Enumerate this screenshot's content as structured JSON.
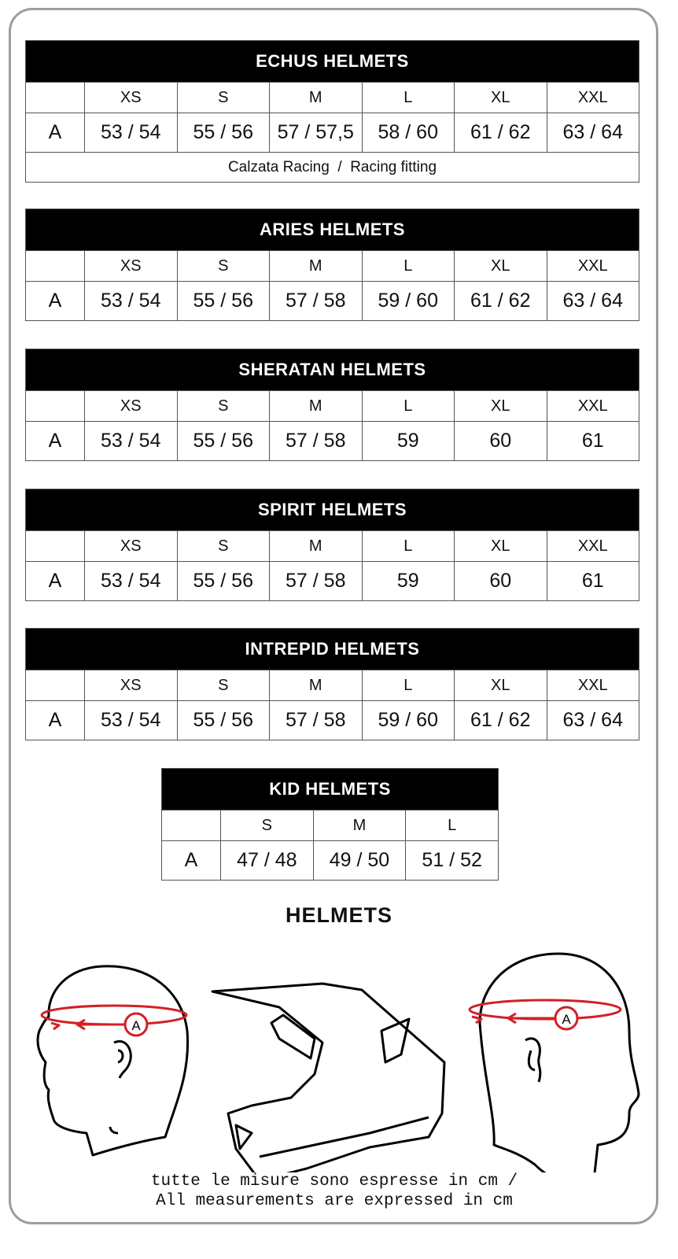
{
  "tables": [
    {
      "title": "ECHUS HELMETS",
      "row_label": "A",
      "sizes": [
        "XS",
        "S",
        "M",
        "L",
        "XL",
        "XXL"
      ],
      "values": [
        "53 / 54",
        "55 / 56",
        "57 / 57,5",
        "58 / 60",
        "61 / 62",
        "63 / 64"
      ],
      "note": "Calzata Racing  /  Racing fitting"
    },
    {
      "title": "ARIES HELMETS",
      "row_label": "A",
      "sizes": [
        "XS",
        "S",
        "M",
        "L",
        "XL",
        "XXL"
      ],
      "values": [
        "53 / 54",
        "55 / 56",
        "57 / 58",
        "59 / 60",
        "61 / 62",
        "63 / 64"
      ]
    },
    {
      "title": "SHERATAN HELMETS",
      "row_label": "A",
      "sizes": [
        "XS",
        "S",
        "M",
        "L",
        "XL",
        "XXL"
      ],
      "values": [
        "53 / 54",
        "55 / 56",
        "57 / 58",
        "59",
        "60",
        "61"
      ]
    },
    {
      "title": "SPIRIT HELMETS",
      "row_label": "A",
      "sizes": [
        "XS",
        "S",
        "M",
        "L",
        "XL",
        "XXL"
      ],
      "values": [
        "53 / 54",
        "55 / 56",
        "57 / 58",
        "59",
        "60",
        "61"
      ]
    },
    {
      "title": "INTREPID HELMETS",
      "row_label": "A",
      "sizes": [
        "XS",
        "S",
        "M",
        "L",
        "XL",
        "XXL"
      ],
      "values": [
        "53 / 54",
        "55 / 56",
        "57 / 58",
        "59 / 60",
        "61 / 62",
        "63 / 64"
      ]
    },
    {
      "title": "KID HELMETS",
      "row_label": "A",
      "sizes": [
        "S",
        "M",
        "L"
      ],
      "values": [
        "47 / 48",
        "49 / 50",
        "51 / 52"
      ]
    }
  ],
  "section_title": "HELMETS",
  "diagram": {
    "marker_label": "A",
    "accent_color": "#d31f26",
    "icons": [
      "head-side-measure",
      "helmet-outline",
      "head-side-measure"
    ]
  },
  "footer": {
    "line1": "tutte le misure sono espresse in cm /",
    "line2": "All measurements are expressed in cm"
  }
}
